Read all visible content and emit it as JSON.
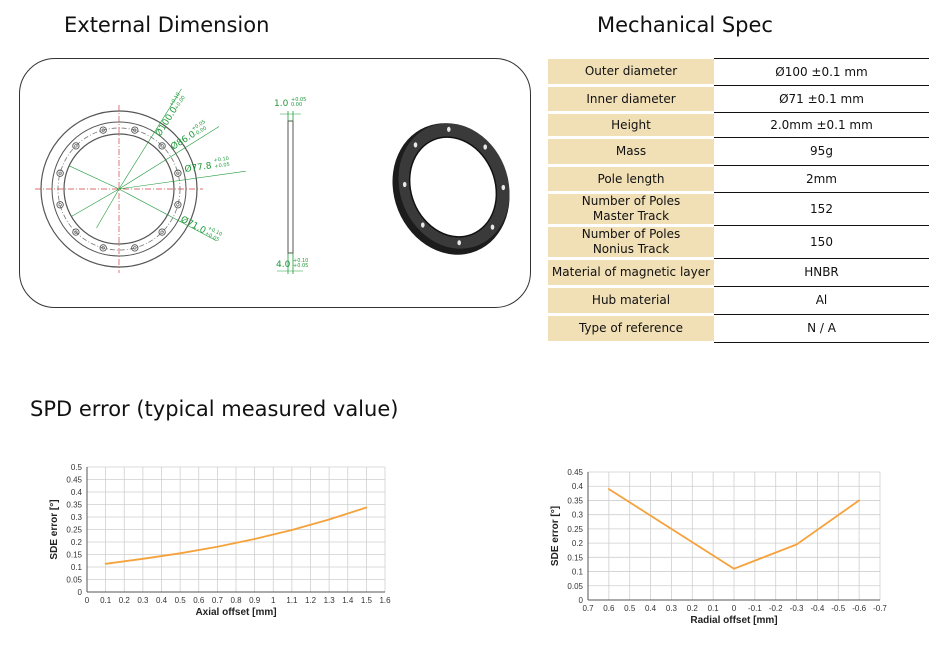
{
  "headings": {
    "external": "External Dimension",
    "mechanical": "Mechanical Spec",
    "spd": "SPD error (typical measured value)"
  },
  "drawing": {
    "dims": {
      "d100": "Ø100.0",
      "d100_tol_up": "+0.10",
      "d100_tol_dn": "+0.00",
      "d86": "Ø86.0",
      "d86_tol_up": "+0.05",
      "d86_tol_dn": "-0.00",
      "d778": "Ø77.8",
      "d778_tol_up": "+0.10",
      "d778_tol_dn": "+0.05",
      "d71": "Ø71.0",
      "d71_tol_up": "+0.10",
      "d71_tol_dn": "+0.05",
      "t10": "1.0",
      "t10_tol_up": "+0.05",
      "t10_tol_dn": "0.00",
      "t40": "4.0",
      "t40_tol_up": "+0.10",
      "t40_tol_dn": "+0.05"
    },
    "colors": {
      "dim": "#1f9a3a",
      "line": "#555555",
      "center": "#d04040",
      "ring_dark": "#1a1a1a"
    }
  },
  "spec": [
    {
      "label": [
        "Outer diameter"
      ],
      "value": "Ø100 ±0.1 mm"
    },
    {
      "label": [
        "Inner diameter"
      ],
      "value": "Ø71 ±0.1 mm"
    },
    {
      "label": [
        "Height"
      ],
      "value": "2.0mm ±0.1 mm"
    },
    {
      "label": [
        "Mass"
      ],
      "value": "95g"
    },
    {
      "label": [
        "Pole length"
      ],
      "value": "2mm"
    },
    {
      "label": [
        "Number of Poles",
        "Master Track"
      ],
      "value": "152"
    },
    {
      "label": [
        "Number of Poles",
        "Nonius Track"
      ],
      "value": "150"
    },
    {
      "label": [
        "Material of magnetic layer"
      ],
      "value": "HNBR"
    },
    {
      "label": [
        "Hub material"
      ],
      "value": "Al"
    },
    {
      "label": [
        "Type of reference"
      ],
      "value": "N / A"
    }
  ],
  "chart_data": [
    {
      "type": "line",
      "xlabel": "Axial offset [mm]",
      "ylabel": "SDE error [°]",
      "xlim": [
        0,
        1.6
      ],
      "ylim": [
        0,
        0.5
      ],
      "xticks": [
        "0",
        "0.1",
        "0.2",
        "0.3",
        "0.4",
        "0.5",
        "0.6",
        "0.7",
        "0.8",
        "0.9",
        "1",
        "1.1",
        "1.2",
        "1.3",
        "1.4",
        "1.5",
        "1.6"
      ],
      "yticks": [
        "0",
        "0.05",
        "0.1",
        "0.15",
        "0.2",
        "0.25",
        "0.3",
        "0.35",
        "0.4",
        "0.45",
        "0.5"
      ],
      "grid": true,
      "color": "#f5a23c",
      "x": [
        0.1,
        0.3,
        0.5,
        0.7,
        0.9,
        1.1,
        1.3,
        1.5
      ],
      "y": [
        0.113,
        0.133,
        0.155,
        0.181,
        0.212,
        0.248,
        0.29,
        0.338
      ]
    },
    {
      "type": "line",
      "xlabel": "Radial offset [mm]",
      "ylabel": "SDE error [°]",
      "xlim": [
        0.7,
        -0.7
      ],
      "ylim": [
        0,
        0.45
      ],
      "xticks": [
        "0.7",
        "0.6",
        "0.5",
        "0.4",
        "0.3",
        "0.2",
        "0.1",
        "0",
        "-0.1",
        "-0.2",
        "-0.3",
        "-0.4",
        "-0.5",
        "-0.6",
        "-0.7"
      ],
      "yticks": [
        "0",
        "0.05",
        "0.1",
        "0.15",
        "0.2",
        "0.25",
        "0.3",
        "0.35",
        "0.4",
        "0.45"
      ],
      "grid": true,
      "color": "#f5a23c",
      "x": [
        0.6,
        0.3,
        0,
        -0.3,
        -0.6
      ],
      "y": [
        0.39,
        0.25,
        0.11,
        0.195,
        0.35
      ]
    }
  ]
}
